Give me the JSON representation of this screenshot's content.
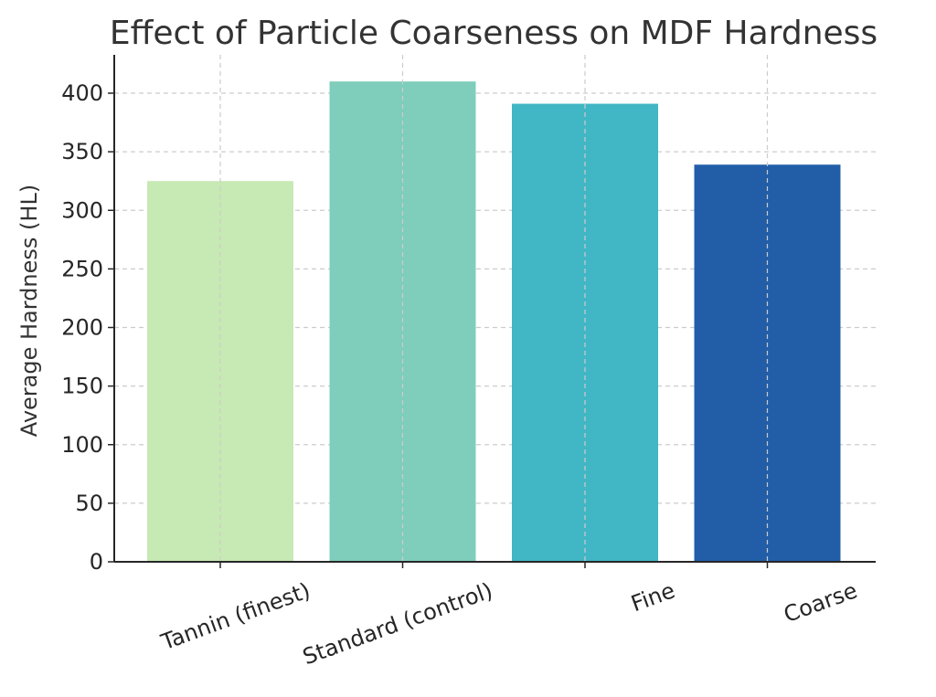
{
  "chart_data": {
    "type": "bar",
    "title": "Effect of Particle Coarseness on MDF Hardness",
    "xlabel": "",
    "ylabel": "Average Hardness (HL)",
    "categories": [
      "Tannin (finest)",
      "Standard (control)",
      "Fine",
      "Coarse"
    ],
    "values": [
      325,
      410,
      391,
      339
    ],
    "colors": [
      "#c7e9b4",
      "#7fcdbb",
      "#41b6c4",
      "#225ea8"
    ],
    "ylim": [
      0,
      430
    ],
    "yticks": [
      0,
      50,
      100,
      150,
      200,
      250,
      300,
      350,
      400
    ],
    "grid": true,
    "legend": "none"
  }
}
